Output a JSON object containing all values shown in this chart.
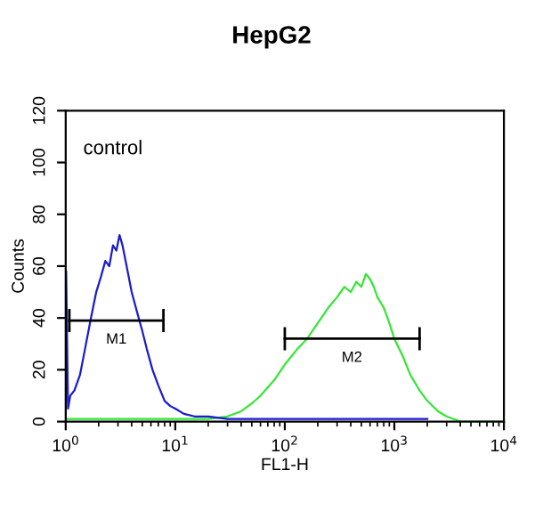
{
  "chart_data": {
    "type": "line",
    "title": "HepG2",
    "xlabel": "FL1-H",
    "ylabel": "Counts",
    "log": "x",
    "xlim": [
      1,
      10000
    ],
    "ylim": [
      0,
      120
    ],
    "xticks": [
      {
        "value": 1,
        "label": "10$^{0}$"
      },
      {
        "value": 10,
        "label": "10$^{1}$"
      },
      {
        "value": 100,
        "label": "10$^{2}$"
      },
      {
        "value": 1000,
        "label": "10$^{3}$"
      },
      {
        "value": 10000,
        "label": "10$^{4}$"
      }
    ],
    "yticks": [
      0,
      20,
      40,
      60,
      80,
      100,
      120
    ],
    "grid": false,
    "legend": false,
    "series": [
      {
        "color": "#33e633",
        "x": [
          1,
          3,
          10,
          20,
          30,
          40,
          50,
          60,
          80,
          100,
          130,
          160,
          200,
          250,
          300,
          350,
          400,
          450,
          500,
          550,
          600,
          650,
          700,
          800,
          900,
          1000,
          1200,
          1400,
          1700,
          2000,
          2500,
          3000,
          4000,
          10000
        ],
        "values": [
          1,
          1,
          1,
          1,
          2,
          4,
          7,
          10,
          16,
          22,
          28,
          32,
          38,
          44,
          48,
          52,
          50,
          54,
          52,
          57,
          55,
          52,
          48,
          44,
          38,
          32,
          25,
          18,
          12,
          8,
          4,
          2,
          0,
          0
        ]
      },
      {
        "color": "#1a1ad0",
        "x": [
          1.0,
          1.01,
          1.05,
          1.1,
          1.2,
          1.35,
          1.5,
          1.7,
          1.9,
          2.1,
          2.3,
          2.5,
          2.7,
          2.9,
          3.1,
          3.3,
          3.6,
          4.0,
          4.5,
          5.0,
          5.5,
          6.2,
          7,
          8,
          9,
          10,
          12,
          15,
          20,
          30,
          50,
          100,
          1000,
          2000
        ],
        "values": [
          0,
          58,
          5,
          10,
          12,
          18,
          28,
          40,
          50,
          56,
          62,
          60,
          68,
          66,
          72,
          68,
          60,
          50,
          42,
          35,
          28,
          20,
          14,
          8,
          6,
          5,
          3,
          2,
          2,
          1,
          1,
          1,
          1,
          1
        ]
      },
      {
        "type": "line",
        "color": "#000000",
        "x": [
          1.08,
          7.8
        ],
        "values": [
          39,
          39
        ]
      },
      {
        "type": "line",
        "color": "#000000",
        "x": [
          100,
          1700
        ],
        "values": [
          32,
          32
        ]
      }
    ],
    "annotations": [
      "control",
      {
        "text": "M1",
        "x": 2.9,
        "y": 39
      },
      {
        "text": "M2",
        "x": 410,
        "y": 32
      }
    ]
  }
}
